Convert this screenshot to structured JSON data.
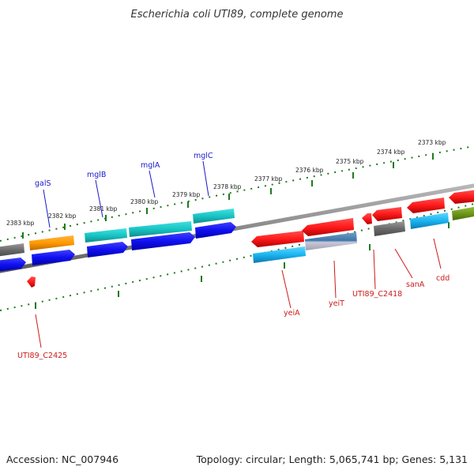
{
  "title": "Escherichia coli UTI89, complete genome",
  "footer": {
    "accession": "Accession: NC_007946",
    "summary": "Topology: circular; Length: 5,065,741 bp; Genes: 5,131"
  },
  "colors": {
    "backbone": "#8a8a8a",
    "tick": "#1f7a1f",
    "label_forward": "#1a1acc",
    "label_reverse": "#cc1a1a"
  },
  "chart_data": {
    "type": "linear genome map",
    "scale_labels": [
      "2383 kbp",
      "2382 kbp",
      "2381 kbp",
      "2380 kbp",
      "2379 kbp",
      "2378 kbp",
      "2377 kbp",
      "2376 kbp",
      "2375 kbp",
      "2374 kbp",
      "2373 kbp"
    ],
    "gene_labels_top": [
      "galS",
      "mglB",
      "mglA",
      "mglC"
    ],
    "gene_labels_bottom": [
      "UTI89_C2425",
      "yeiA",
      "yeiT",
      "UTI89_C2418",
      "sanA",
      "cdd"
    ],
    "features": [
      {
        "strand": "top",
        "name": "",
        "color": "#6e6e6e"
      },
      {
        "strand": "top",
        "name": "galS",
        "color": "#ff9a00"
      },
      {
        "strand": "top",
        "name": "mglB",
        "color": "#19c4c4"
      },
      {
        "strand": "top",
        "name": "mglA",
        "color": "#19c4c4"
      },
      {
        "strand": "top",
        "name": "mglC",
        "color": "#19c4c4"
      },
      {
        "strand": "bottom",
        "name": "yeiA",
        "color": "#ff1a1a"
      },
      {
        "strand": "bottom",
        "name": "yeiT",
        "color": "#ff1a1a"
      },
      {
        "strand": "bottom",
        "name": "UTI89_C2418",
        "color": "#ff1a1a"
      },
      {
        "strand": "bottom",
        "name": "sanA",
        "color": "#ff1a1a"
      },
      {
        "strand": "bottom",
        "name": "cdd",
        "color": "#ff1a1a"
      }
    ]
  }
}
